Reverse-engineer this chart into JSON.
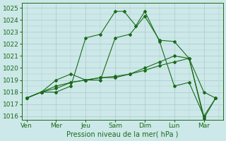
{
  "title": "Pression niveau de la mer( hPa )",
  "bg_color": "#cde8e8",
  "grid_color": "#aac8cc",
  "line_color": "#1a6b1a",
  "ylim": [
    1016,
    1025
  ],
  "yticks": [
    1016,
    1017,
    1018,
    1019,
    1020,
    1021,
    1022,
    1023,
    1024,
    1025
  ],
  "x_labels": [
    "Ven",
    "Mer",
    "Jeu",
    "Sam",
    "Dim",
    "Lun",
    "Mar"
  ],
  "x_positions": [
    0,
    1,
    2,
    3,
    4,
    5,
    6
  ],
  "series": [
    {
      "x": [
        0,
        0.5,
        1.0,
        1.5,
        2.0,
        2.5,
        3.0,
        3.3,
        3.7,
        4.0,
        4.5,
        5.0,
        5.5,
        6.0
      ],
      "y": [
        1017.5,
        1018.0,
        1018.0,
        1018.5,
        1022.5,
        1022.8,
        1024.7,
        1024.7,
        1023.5,
        1024.7,
        1022.2,
        1018.5,
        1018.8,
        1016.0
      ]
    },
    {
      "x": [
        0,
        0.5,
        1.0,
        1.5,
        2.0,
        2.5,
        3.0,
        3.5,
        4.0,
        4.5,
        5.0,
        5.5,
        6.0,
        6.4
      ],
      "y": [
        1017.5,
        1018.0,
        1019.0,
        1019.5,
        1019.0,
        1019.0,
        1022.5,
        1022.8,
        1024.3,
        1022.3,
        1022.2,
        1020.8,
        1015.8,
        1017.5
      ]
    },
    {
      "x": [
        0,
        0.5,
        1.0,
        1.5,
        2.0,
        2.5,
        3.0,
        3.5,
        4.0,
        4.5,
        5.0,
        5.5,
        6.0,
        6.4
      ],
      "y": [
        1017.5,
        1018.0,
        1018.3,
        1018.8,
        1019.0,
        1019.2,
        1019.3,
        1019.5,
        1020.0,
        1020.5,
        1021.0,
        1020.8,
        1016.0,
        1017.5
      ]
    },
    {
      "x": [
        0,
        0.5,
        1.0,
        1.5,
        2.0,
        2.5,
        3.0,
        3.5,
        4.0,
        4.5,
        5.0,
        5.5,
        6.0,
        6.4
      ],
      "y": [
        1017.5,
        1018.0,
        1018.5,
        1018.8,
        1019.0,
        1019.2,
        1019.2,
        1019.5,
        1019.8,
        1020.2,
        1020.5,
        1020.8,
        1018.0,
        1017.5
      ]
    }
  ]
}
